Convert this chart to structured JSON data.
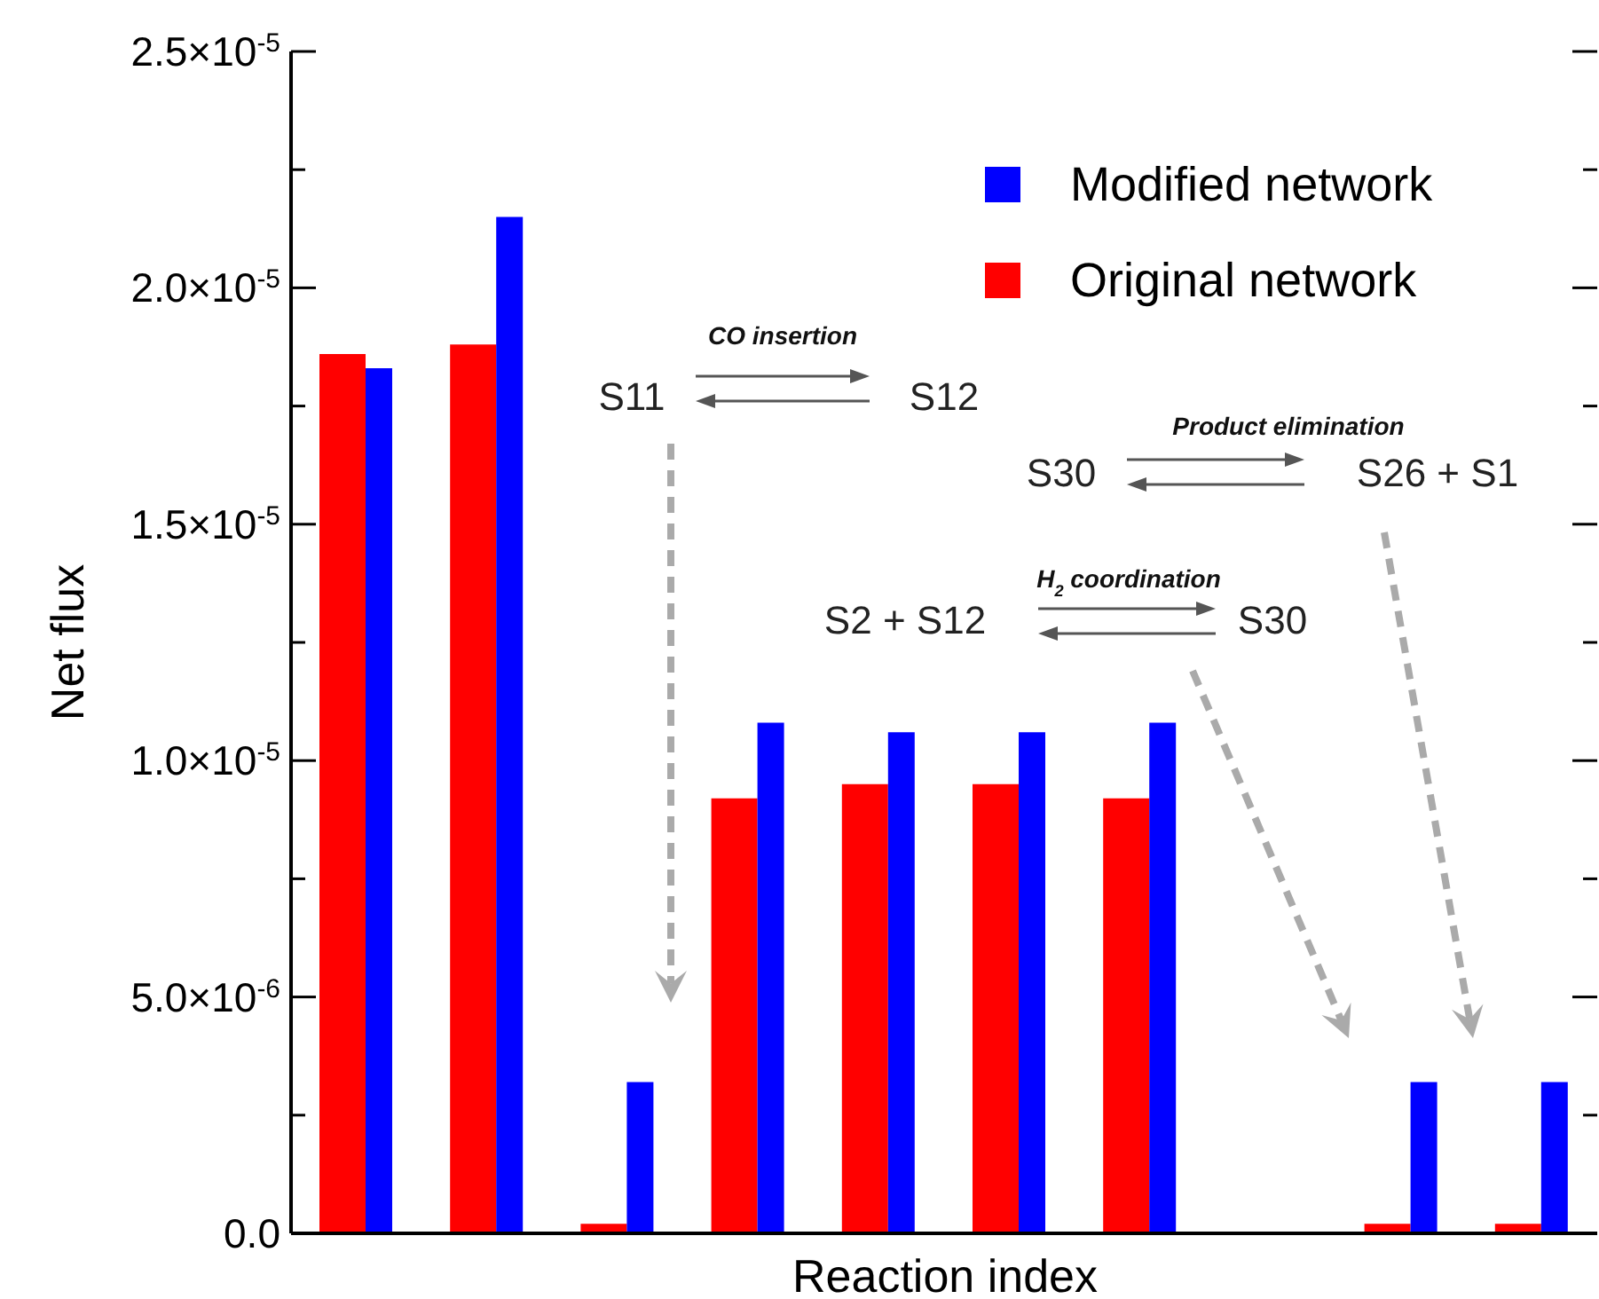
{
  "chart_data": {
    "type": "bar",
    "xlabel": "Reaction index",
    "ylabel": "Net flux",
    "categories": [
      null,
      null,
      null,
      null,
      null,
      null,
      null,
      null,
      null,
      null
    ],
    "series": [
      {
        "name": "Original network",
        "color": "#ff0000",
        "values": [
          1.86e-05,
          1.88e-05,
          2e-07,
          9.2e-06,
          9.5e-06,
          9.5e-06,
          9.2e-06,
          null,
          2e-07,
          2e-07
        ]
      },
      {
        "name": "Modified network",
        "color": "#0000ff",
        "values": [
          1.83e-05,
          2.15e-05,
          3.2e-06,
          1.08e-05,
          1.06e-05,
          1.06e-05,
          1.08e-05,
          null,
          3.2e-06,
          3.2e-06
        ]
      }
    ],
    "ylim": [
      0,
      2.5e-05
    ],
    "yticks": [
      {
        "value": 0,
        "label": "0.0"
      },
      {
        "value": 2.5e-06,
        "label": null
      },
      {
        "value": 5e-06,
        "label": "5.0×10$^{-6}$"
      },
      {
        "value": 7.5e-06,
        "label": null
      },
      {
        "value": 1e-05,
        "label": "1.0×10$^{-5}$"
      },
      {
        "value": 1.25e-05,
        "label": null
      },
      {
        "value": 1.5e-05,
        "label": "1.5×10$^{-5}$"
      },
      {
        "value": 1.75e-05,
        "label": null
      },
      {
        "value": 2e-05,
        "label": "2.0×10$^{-5}$"
      },
      {
        "value": 2.25e-05,
        "label": null
      },
      {
        "value": 2.5e-05,
        "label": "2.5×10$^{-5}$"
      }
    ],
    "grid": false,
    "legend": "top right",
    "annotations": [
      "CO insertion",
      "S11",
      "S12",
      "Product elimination",
      "S30",
      "S26 + S1",
      "H$_{2}$ coordination",
      "S2 + S12",
      "S30"
    ]
  }
}
